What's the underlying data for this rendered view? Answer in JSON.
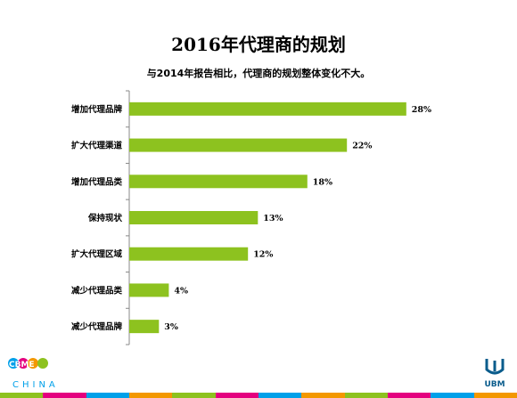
{
  "title": "2016年代理商的规划",
  "subtitle": "与2014年报告相比，代理商的规划整体变化不大。",
  "bar_color": "#8DC21F",
  "chart_data": {
    "type": "bar",
    "orientation": "horizontal",
    "categories": [
      "增加代理品牌",
      "扩大代理渠道",
      "增加代理品类",
      "保持现状",
      "扩大代理区域",
      "减少代理品类",
      "减少代理品牌"
    ],
    "values": [
      28,
      22,
      18,
      13,
      12,
      4,
      3
    ],
    "value_labels": [
      "28%",
      "22%",
      "18%",
      "13%",
      "12%",
      "4%",
      "3%"
    ],
    "xlim": [
      0,
      30
    ],
    "grid": false,
    "legend": "none"
  },
  "logos": {
    "left_brand": "CBME",
    "left_sub": "CHINA",
    "right_brand": "UBM"
  },
  "footer_stripe_colors": [
    "#8DC21F",
    "#E4007F",
    "#00A0E9",
    "#F39800",
    "#8DC21F",
    "#E4007F",
    "#00A0E9",
    "#F39800",
    "#8DC21F",
    "#E4007F",
    "#00A0E9",
    "#F39800"
  ]
}
